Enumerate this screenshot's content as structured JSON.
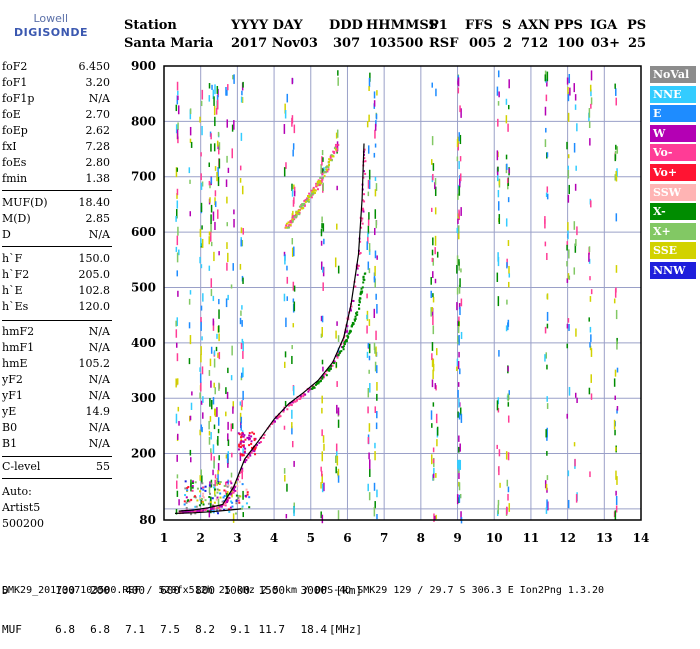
{
  "logo": {
    "line1": "Lowell",
    "line2": "DIGISONDE"
  },
  "header": {
    "station_label": "Station",
    "station_value": "Santa Maria",
    "yyyy_day_label": "YYYY DAY",
    "yyyy_day_value": "2017 Nov03",
    "ddd_label": "DDD",
    "ddd_value": "307",
    "hhmmss_label": "HHMMSS",
    "hhmmss_value": "103500",
    "p1_label": "P1",
    "p1_value": "RSF",
    "ffs_label": "FFS",
    "ffs_value": "005",
    "s_label": "S",
    "s_value": "2",
    "axn_label": "AXN",
    "axn_value": "712",
    "pps_label": "PPS",
    "pps_value": "100",
    "iga_label": "IGA",
    "iga_value": "03+",
    "ps_label": "PS",
    "ps_value": "25"
  },
  "params": {
    "group1": [
      {
        "k": "foF2",
        "v": "6.450"
      },
      {
        "k": "foF1",
        "v": "3.20"
      },
      {
        "k": "foF1p",
        "v": "N/A"
      },
      {
        "k": "foE",
        "v": "2.70"
      },
      {
        "k": "foEp",
        "v": "2.62"
      },
      {
        "k": "fxI",
        "v": "7.28"
      },
      {
        "k": "foEs",
        "v": "2.80"
      },
      {
        "k": "fmin",
        "v": "1.38"
      }
    ],
    "group2": [
      {
        "k": "MUF(D)",
        "v": "18.40"
      },
      {
        "k": "M(D)",
        "v": "2.85"
      },
      {
        "k": "D",
        "v": "N/A"
      }
    ],
    "group3": [
      {
        "k": "h`F",
        "v": "150.0"
      },
      {
        "k": "h`F2",
        "v": "205.0"
      },
      {
        "k": "h`E",
        "v": "102.8"
      },
      {
        "k": "h`Es",
        "v": "120.0"
      }
    ],
    "group4": [
      {
        "k": "hmF2",
        "v": "N/A"
      },
      {
        "k": "hmF1",
        "v": "N/A"
      },
      {
        "k": "hmE",
        "v": "105.2"
      },
      {
        "k": "yF2",
        "v": "N/A"
      },
      {
        "k": "yF1",
        "v": "N/A"
      },
      {
        "k": "yE",
        "v": "14.9"
      },
      {
        "k": "B0",
        "v": "N/A"
      },
      {
        "k": "B1",
        "v": "N/A"
      }
    ],
    "group5": [
      {
        "k": "C-level",
        "v": "55"
      }
    ],
    "auto_label": "Auto:",
    "artist": "Artist5",
    "version": "500200"
  },
  "legend": [
    {
      "label": "NoVal",
      "color": "#8c8c8c"
    },
    {
      "label": "NNE",
      "color": "#33ccff"
    },
    {
      "label": "E",
      "color": "#1e8cff"
    },
    {
      "label": "W",
      "color": "#b400b4"
    },
    {
      "label": "Vo-",
      "color": "#ff3c96"
    },
    {
      "label": "Vo+",
      "color": "#ff1432"
    },
    {
      "label": "SSW",
      "color": "#ffb4b4"
    },
    {
      "label": "X-",
      "color": "#008c00"
    },
    {
      "label": "X+",
      "color": "#82c864"
    },
    {
      "label": "SSE",
      "color": "#d2d200"
    },
    {
      "label": "NNW",
      "color": "#1e1edc"
    }
  ],
  "bottom": {
    "d_label": "D",
    "d_values": [
      "100",
      "200",
      "400",
      "600",
      "800",
      "1000",
      "1500",
      "3000",
      "[km]"
    ],
    "muf_label": "MUF",
    "muf_values": [
      "6.8",
      "6.8",
      "7.1",
      "7.5",
      "8.2",
      "9.1",
      "11.7",
      "18.4",
      "[MHz]"
    ]
  },
  "footer": "SMK29_2017307103500.RSF / 520fx512h 25 kHz 2.5 km / DPS-4D SMK29 129 / 29.7 S 306.3 E Ion2Png 1.3.20",
  "chart_data": {
    "type": "scatter",
    "xlabel": "",
    "ylabel": "",
    "xlim": [
      1,
      14
    ],
    "ylim": [
      80,
      900
    ],
    "x_ticks": [
      1,
      2,
      3,
      4,
      5,
      6,
      7,
      8,
      9,
      10,
      11,
      12,
      13,
      14
    ],
    "y_ticks": [
      80,
      100,
      200,
      300,
      400,
      500,
      600,
      700,
      800,
      900
    ],
    "y_tick_labels": [
      "80",
      "",
      "200",
      "300",
      "400",
      "500",
      "600",
      "700",
      "800",
      "900"
    ],
    "grid": true,
    "legend_placement": "right",
    "trace_main": [
      [
        1.4,
        96
      ],
      [
        1.8,
        98
      ],
      [
        2.2,
        102
      ],
      [
        2.6,
        108
      ],
      [
        2.9,
        140
      ],
      [
        3.2,
        190
      ],
      [
        3.6,
        225
      ],
      [
        4.0,
        262
      ],
      [
        4.4,
        290
      ],
      [
        4.8,
        310
      ],
      [
        5.2,
        332
      ],
      [
        5.6,
        365
      ],
      [
        5.9,
        410
      ],
      [
        6.1,
        470
      ],
      [
        6.3,
        560
      ],
      [
        6.4,
        660
      ],
      [
        6.45,
        760
      ]
    ],
    "trace_low": [
      [
        1.3,
        92
      ],
      [
        1.8,
        93
      ],
      [
        2.3,
        95
      ],
      [
        2.8,
        98
      ],
      [
        3.1,
        100
      ]
    ],
    "trace_x": [
      [
        5.0,
        318
      ],
      [
        5.4,
        345
      ],
      [
        5.8,
        385
      ],
      [
        6.1,
        430
      ],
      [
        6.3,
        470
      ],
      [
        6.45,
        530
      ]
    ],
    "trace_high": [
      [
        4.3,
        610
      ],
      [
        4.6,
        635
      ],
      [
        4.9,
        660
      ],
      [
        5.2,
        690
      ],
      [
        5.5,
        730
      ],
      [
        5.7,
        760
      ]
    ]
  }
}
